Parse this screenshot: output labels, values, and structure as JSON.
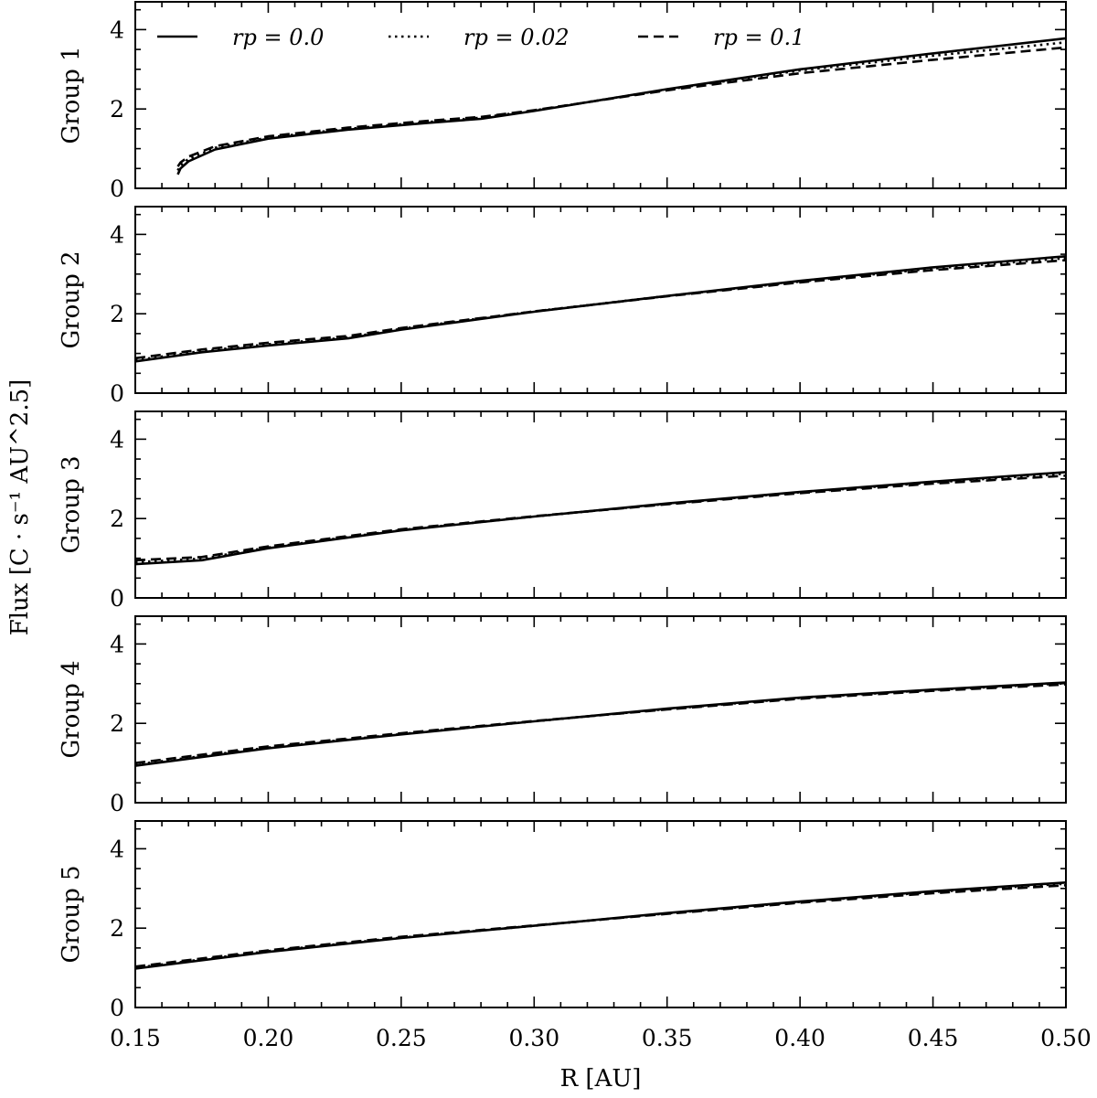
{
  "chart_data": {
    "type": "line",
    "xlabel": "R [AU]",
    "ylabel": "Flux [C · s⁻¹ AU^2.5]",
    "xlim": [
      0.15,
      0.5
    ],
    "ylim": [
      0,
      4.7
    ],
    "x_ticks": [
      "0.15",
      "0.20",
      "0.25",
      "0.30",
      "0.35",
      "0.40",
      "0.45",
      "0.50"
    ],
    "y_ticks": [
      "0",
      "2",
      "4"
    ],
    "grid": false,
    "shared_x": true,
    "legend": {
      "position": "top",
      "entries": [
        {
          "label": "rp = 0.0",
          "style": "solid"
        },
        {
          "label": "rp = 0.02",
          "style": "dotted"
        },
        {
          "label": "rp = 0.1",
          "style": "dashed"
        }
      ]
    },
    "panels": [
      {
        "name": "Group 1",
        "series": [
          {
            "name": "rp = 0.0",
            "style": "solid",
            "x": [
              0.166,
              0.167,
              0.17,
              0.18,
              0.2,
              0.23,
              0.26,
              0.28,
              0.3,
              0.35,
              0.4,
              0.45,
              0.5
            ],
            "y": [
              0.35,
              0.5,
              0.68,
              0.98,
              1.25,
              1.48,
              1.65,
              1.75,
              1.95,
              2.5,
              3.0,
              3.4,
              3.78
            ]
          },
          {
            "name": "rp = 0.02",
            "style": "dotted",
            "x": [
              0.166,
              0.167,
              0.17,
              0.18,
              0.2,
              0.23,
              0.26,
              0.28,
              0.3,
              0.35,
              0.4,
              0.45,
              0.5
            ],
            "y": [
              0.45,
              0.58,
              0.74,
              1.02,
              1.28,
              1.5,
              1.67,
              1.78,
              1.96,
              2.49,
              2.97,
              3.34,
              3.68
            ]
          },
          {
            "name": "rp = 0.1",
            "style": "dashed",
            "x": [
              0.166,
              0.167,
              0.17,
              0.18,
              0.2,
              0.23,
              0.26,
              0.28,
              0.3,
              0.35,
              0.4,
              0.45,
              0.5
            ],
            "y": [
              0.55,
              0.65,
              0.8,
              1.06,
              1.31,
              1.53,
              1.7,
              1.8,
              1.97,
              2.47,
              2.9,
              3.24,
              3.55
            ]
          }
        ]
      },
      {
        "name": "Group 2",
        "series": [
          {
            "name": "rp = 0.0",
            "style": "solid",
            "x": [
              0.15,
              0.175,
              0.2,
              0.23,
              0.25,
              0.3,
              0.35,
              0.4,
              0.45,
              0.5
            ],
            "y": [
              0.8,
              1.03,
              1.2,
              1.38,
              1.6,
              2.05,
              2.45,
              2.83,
              3.17,
              3.45
            ]
          },
          {
            "name": "rp = 0.02",
            "style": "dotted",
            "x": [
              0.15,
              0.175,
              0.2,
              0.23,
              0.25,
              0.3,
              0.35,
              0.4,
              0.45,
              0.5
            ],
            "y": [
              0.83,
              1.06,
              1.23,
              1.4,
              1.62,
              2.06,
              2.45,
              2.81,
              3.14,
              3.4
            ]
          },
          {
            "name": "rp = 0.1",
            "style": "dashed",
            "x": [
              0.15,
              0.175,
              0.2,
              0.23,
              0.25,
              0.3,
              0.35,
              0.4,
              0.45,
              0.5
            ],
            "y": [
              0.88,
              1.1,
              1.27,
              1.44,
              1.64,
              2.06,
              2.44,
              2.79,
              3.1,
              3.35
            ]
          }
        ]
      },
      {
        "name": "Group 3",
        "series": [
          {
            "name": "rp = 0.0",
            "style": "solid",
            "x": [
              0.15,
              0.175,
              0.2,
              0.25,
              0.3,
              0.35,
              0.4,
              0.45,
              0.5
            ],
            "y": [
              0.85,
              0.95,
              1.25,
              1.7,
              2.05,
              2.38,
              2.67,
              2.93,
              3.17
            ]
          },
          {
            "name": "rp = 0.02",
            "style": "dotted",
            "x": [
              0.15,
              0.175,
              0.2,
              0.25,
              0.3,
              0.35,
              0.4,
              0.45,
              0.5
            ],
            "y": [
              0.9,
              0.99,
              1.27,
              1.71,
              2.05,
              2.37,
              2.66,
              2.91,
              3.13
            ]
          },
          {
            "name": "rp = 0.1",
            "style": "dashed",
            "x": [
              0.15,
              0.175,
              0.2,
              0.25,
              0.3,
              0.35,
              0.4,
              0.45,
              0.5
            ],
            "y": [
              0.95,
              1.03,
              1.3,
              1.73,
              2.06,
              2.36,
              2.64,
              2.88,
              3.08
            ]
          }
        ]
      },
      {
        "name": "Group 4",
        "series": [
          {
            "name": "rp = 0.0",
            "style": "solid",
            "x": [
              0.15,
              0.2,
              0.25,
              0.3,
              0.35,
              0.4,
              0.45,
              0.5
            ],
            "y": [
              0.93,
              1.37,
              1.72,
              2.05,
              2.37,
              2.65,
              2.85,
              3.03
            ]
          },
          {
            "name": "rp = 0.02",
            "style": "dotted",
            "x": [
              0.15,
              0.2,
              0.25,
              0.3,
              0.35,
              0.4,
              0.45,
              0.5
            ],
            "y": [
              0.96,
              1.39,
              1.73,
              2.05,
              2.36,
              2.64,
              2.84,
              3.01
            ]
          },
          {
            "name": "rp = 0.1",
            "style": "dashed",
            "x": [
              0.15,
              0.2,
              0.25,
              0.3,
              0.35,
              0.4,
              0.45,
              0.5
            ],
            "y": [
              1.0,
              1.42,
              1.75,
              2.06,
              2.35,
              2.62,
              2.82,
              2.98
            ]
          }
        ]
      },
      {
        "name": "Group 5",
        "series": [
          {
            "name": "rp = 0.0",
            "style": "solid",
            "x": [
              0.15,
              0.2,
              0.25,
              0.3,
              0.35,
              0.4,
              0.45,
              0.5
            ],
            "y": [
              0.98,
              1.4,
              1.75,
              2.06,
              2.38,
              2.67,
              2.93,
              3.15
            ]
          },
          {
            "name": "rp = 0.02",
            "style": "dotted",
            "x": [
              0.15,
              0.2,
              0.25,
              0.3,
              0.35,
              0.4,
              0.45,
              0.5
            ],
            "y": [
              1.0,
              1.42,
              1.76,
              2.06,
              2.37,
              2.66,
              2.91,
              3.12
            ]
          },
          {
            "name": "rp = 0.1",
            "style": "dashed",
            "x": [
              0.15,
              0.2,
              0.25,
              0.3,
              0.35,
              0.4,
              0.45,
              0.5
            ],
            "y": [
              1.03,
              1.44,
              1.78,
              2.07,
              2.36,
              2.64,
              2.88,
              3.08
            ]
          }
        ]
      }
    ]
  }
}
